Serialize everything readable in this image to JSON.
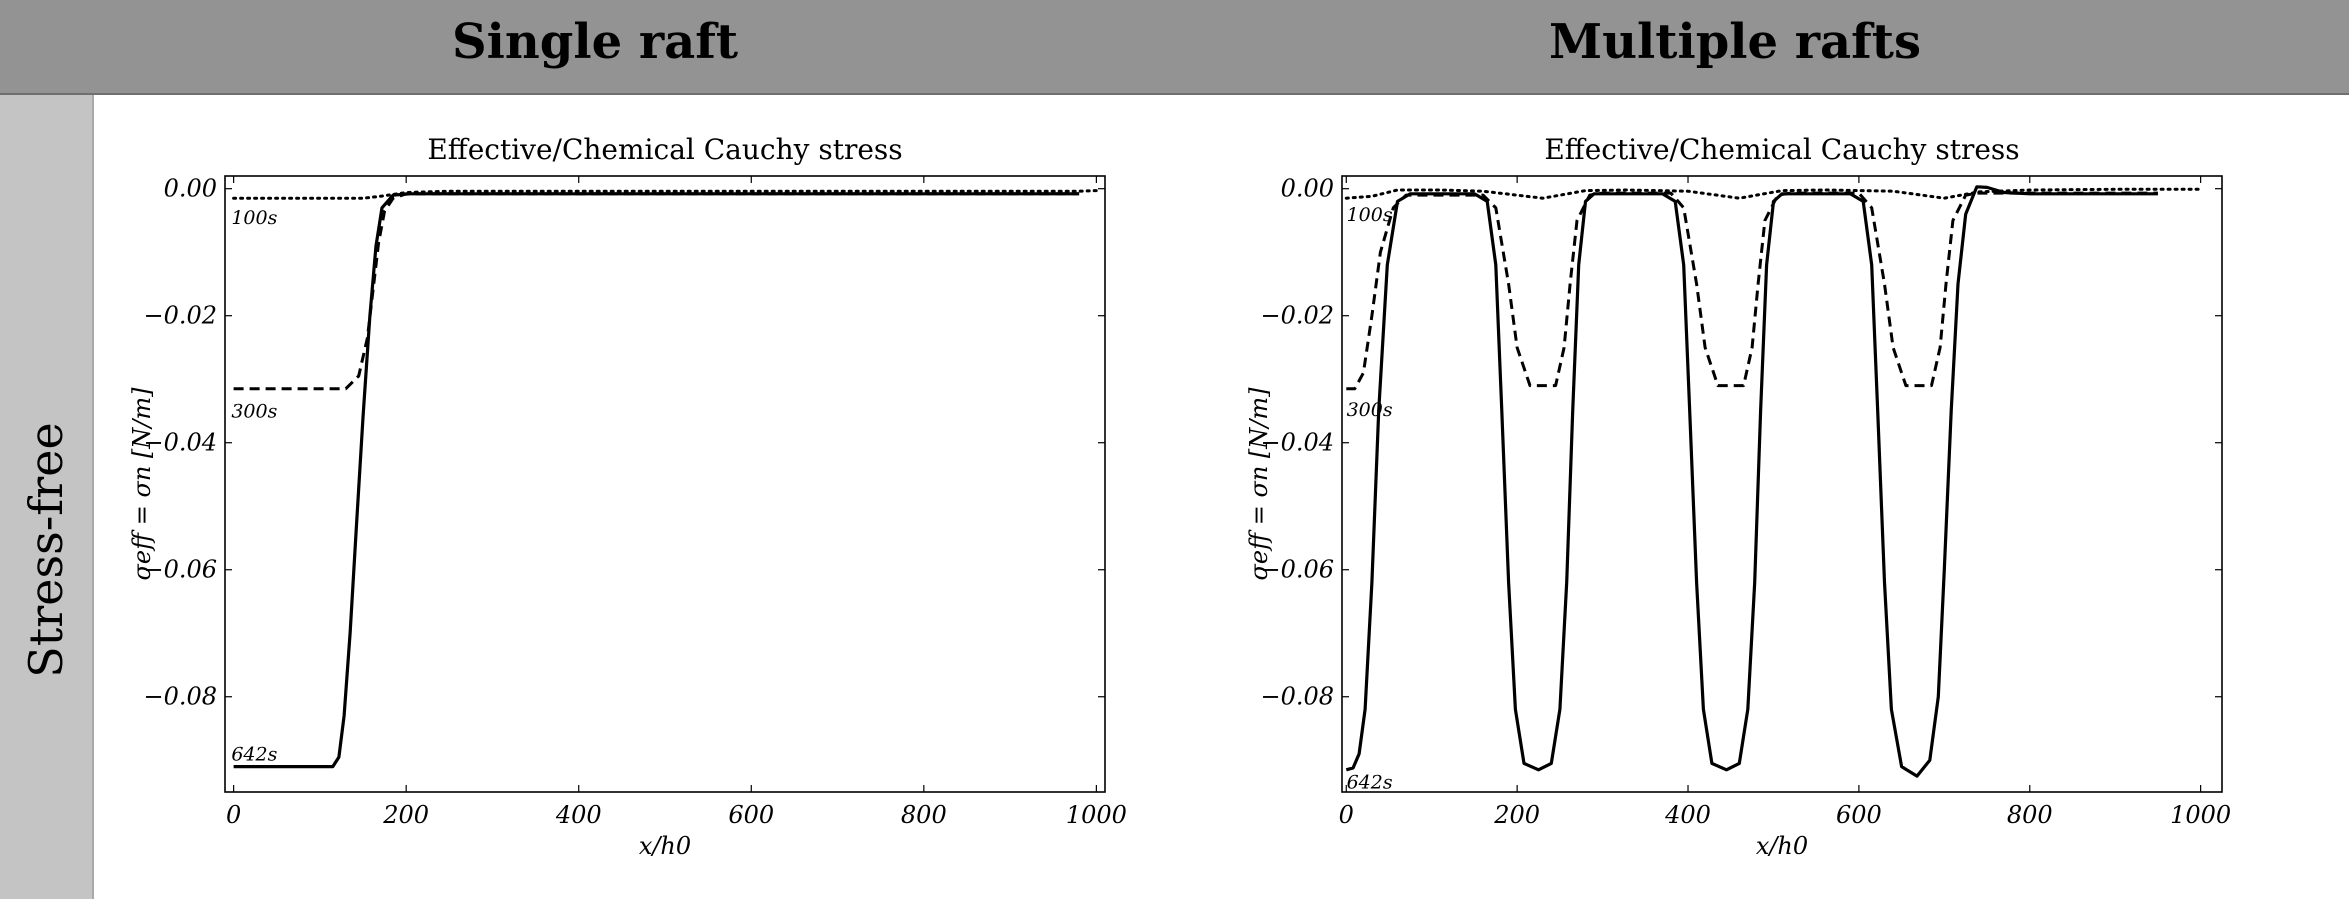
{
  "header": {
    "left_title": "Single raft",
    "right_title": "Multiple rafts"
  },
  "row": {
    "label": "Stress-free"
  },
  "chart_data": [
    {
      "type": "line",
      "title": "Effective/Chemical Cauchy stress",
      "xlabel": "x/h0",
      "ylabel": "σeff = σn [N/m]",
      "xlim": [
        -10,
        1010
      ],
      "ylim": [
        -0.095,
        0.002
      ],
      "xticks": [
        0,
        200,
        400,
        600,
        800,
        1000
      ],
      "yticks": [
        0.0,
        -0.02,
        -0.04,
        -0.06,
        -0.08
      ],
      "ytick_labels": [
        "0.00",
        "−0.02",
        "−0.04",
        "−0.06",
        "−0.08"
      ],
      "annotations": [
        {
          "text": "100s",
          "x": -5,
          "y": -0.0043
        },
        {
          "text": "300s",
          "x": -5,
          "y": -0.0348
        },
        {
          "text": "642s",
          "x": -5,
          "y": -0.0888
        }
      ],
      "series": [
        {
          "style": "dotted",
          "x": [
            0,
            100,
            150,
            170,
            200,
            250,
            400,
            600,
            800,
            980,
            1000
          ],
          "y": [
            -0.0015,
            -0.0015,
            -0.0015,
            -0.0012,
            -0.0006,
            -0.0004,
            -0.0004,
            -0.0004,
            -0.0004,
            -0.0004,
            -0.0003
          ]
        },
        {
          "style": "dashed",
          "x": [
            0,
            130,
            145,
            155,
            162,
            168,
            175,
            185,
            200,
            300,
            600,
            980
          ],
          "y": [
            -0.0315,
            -0.0315,
            -0.0295,
            -0.0235,
            -0.0155,
            -0.0085,
            -0.0035,
            -0.0015,
            -0.0008,
            -0.0008,
            -0.0008,
            -0.0008
          ]
        },
        {
          "style": "solid",
          "x": [
            0,
            115,
            122,
            128,
            135,
            142,
            150,
            158,
            165,
            172,
            185,
            205,
            400,
            700,
            980
          ],
          "y": [
            -0.091,
            -0.091,
            -0.0895,
            -0.083,
            -0.07,
            -0.054,
            -0.036,
            -0.02,
            -0.009,
            -0.003,
            -0.001,
            -0.0008,
            -0.0008,
            -0.0008,
            -0.0008
          ]
        }
      ]
    },
    {
      "type": "line",
      "title": "Effective/Chemical Cauchy stress",
      "xlabel": "x/h0",
      "ylabel": "σeff = σn [N/m]",
      "xlim": [
        -5,
        1025
      ],
      "ylim": [
        -0.095,
        0.002
      ],
      "xticks": [
        0,
        200,
        400,
        600,
        800,
        1000
      ],
      "yticks": [
        0.0,
        -0.02,
        -0.04,
        -0.06,
        -0.08
      ],
      "ytick_labels": [
        "0.00",
        "−0.02",
        "−0.04",
        "−0.06",
        "−0.08"
      ],
      "annotations": [
        {
          "text": "100s",
          "x": -2,
          "y": -0.0038
        },
        {
          "text": "300s",
          "x": -2,
          "y": -0.0345
        },
        {
          "text": "642s",
          "x": -2,
          "y": -0.0932
        }
      ],
      "series": [
        {
          "style": "dotted",
          "x": [
            0,
            30,
            60,
            110,
            160,
            230,
            280,
            330,
            400,
            460,
            510,
            560,
            640,
            700,
            740,
            800,
            900,
            1000
          ],
          "y": [
            -0.0015,
            -0.0012,
            -0.0002,
            -0.0002,
            -0.0004,
            -0.0015,
            -0.0003,
            -0.0002,
            -0.0004,
            -0.0015,
            -0.0003,
            -0.0002,
            -0.0004,
            -0.0015,
            -0.0005,
            -0.0002,
            -0.0001,
            -0.0001
          ]
        },
        {
          "style": "dashed",
          "x": [
            0,
            10,
            20,
            30,
            40,
            55,
            70,
            160,
            175,
            190,
            200,
            215,
            245,
            255,
            262,
            270,
            285,
            300,
            380,
            395,
            410,
            420,
            435,
            465,
            475,
            482,
            490,
            505,
            520,
            600,
            615,
            630,
            640,
            655,
            685,
            695,
            702,
            710,
            725,
            740,
            800,
            950
          ],
          "y": [
            -0.0315,
            -0.0315,
            -0.029,
            -0.02,
            -0.01,
            -0.003,
            -0.001,
            -0.001,
            -0.003,
            -0.015,
            -0.025,
            -0.031,
            -0.031,
            -0.025,
            -0.015,
            -0.005,
            -0.001,
            -0.0007,
            -0.0007,
            -0.003,
            -0.015,
            -0.025,
            -0.031,
            -0.031,
            -0.025,
            -0.015,
            -0.005,
            -0.001,
            -0.0007,
            -0.0007,
            -0.003,
            -0.015,
            -0.025,
            -0.031,
            -0.031,
            -0.025,
            -0.015,
            -0.005,
            -0.001,
            -0.0007,
            -0.0007,
            -0.0007
          ]
        },
        {
          "style": "solid",
          "x": [
            0,
            8,
            15,
            22,
            30,
            38,
            48,
            60,
            75,
            150,
            165,
            175,
            182,
            190,
            198,
            208,
            225,
            240,
            250,
            258,
            265,
            272,
            280,
            290,
            305,
            370,
            385,
            395,
            402,
            410,
            418,
            428,
            445,
            460,
            470,
            478,
            485,
            492,
            500,
            510,
            525,
            590,
            605,
            615,
            622,
            630,
            638,
            650,
            668,
            683,
            693,
            700,
            708,
            716,
            725,
            738,
            750,
            770,
            800,
            950
          ],
          "y": [
            -0.0915,
            -0.0912,
            -0.089,
            -0.082,
            -0.062,
            -0.035,
            -0.012,
            -0.002,
            -0.0008,
            -0.0008,
            -0.002,
            -0.012,
            -0.035,
            -0.062,
            -0.082,
            -0.0905,
            -0.0915,
            -0.0905,
            -0.082,
            -0.062,
            -0.035,
            -0.012,
            -0.002,
            -0.0008,
            -0.0008,
            -0.0008,
            -0.002,
            -0.012,
            -0.035,
            -0.062,
            -0.082,
            -0.0905,
            -0.0915,
            -0.0905,
            -0.082,
            -0.062,
            -0.035,
            -0.012,
            -0.002,
            -0.0008,
            -0.0008,
            -0.0008,
            -0.002,
            -0.012,
            -0.035,
            -0.062,
            -0.082,
            -0.091,
            -0.0925,
            -0.09,
            -0.08,
            -0.06,
            -0.035,
            -0.015,
            -0.004,
            0.0003,
            0.0002,
            -0.0006,
            -0.0008,
            -0.0008
          ]
        }
      ]
    }
  ]
}
